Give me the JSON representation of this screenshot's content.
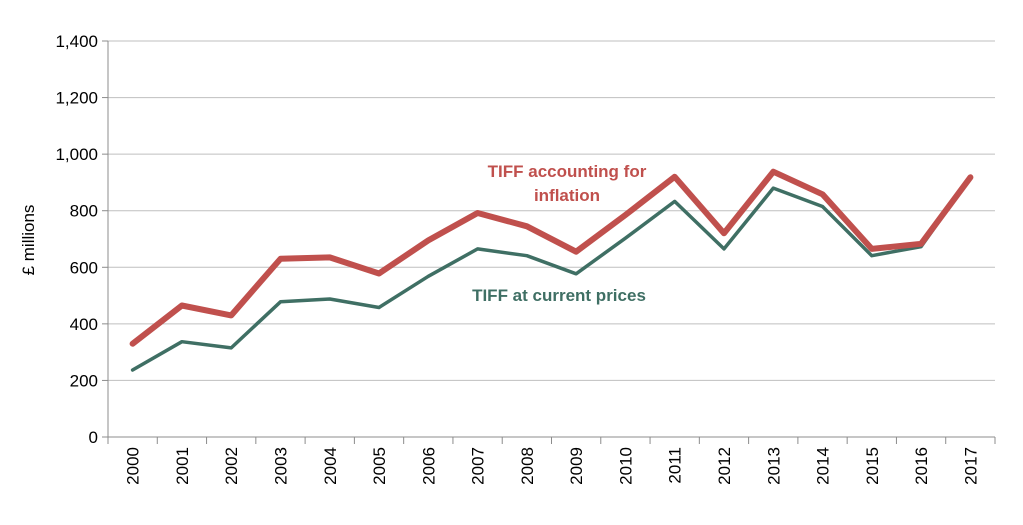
{
  "chart_data": {
    "type": "line",
    "title": "",
    "xlabel": "",
    "ylabel": "£ millions",
    "ylim": [
      0,
      1400
    ],
    "yticks": [
      0,
      200,
      400,
      600,
      800,
      1000,
      1200,
      1400
    ],
    "ytick_labels": [
      "0",
      "200",
      "400",
      "600",
      "800",
      "1,000",
      "1,200",
      "1,400"
    ],
    "grid": true,
    "categories": [
      "2000",
      "2001",
      "2002",
      "2003",
      "2004",
      "2005",
      "2006",
      "2007",
      "2008",
      "2009",
      "2010",
      "2011",
      "2012",
      "2013",
      "2014",
      "2015",
      "2016",
      "2017"
    ],
    "series": [
      {
        "name": "TIFF accounting for inflation",
        "label_lines": [
          "TIFF accounting for",
          "inflation"
        ],
        "color": "#c0504d",
        "values": [
          330,
          465,
          430,
          630,
          635,
          578,
          695,
          792,
          745,
          655,
          785,
          920,
          720,
          938,
          858,
          665,
          683,
          918
        ]
      },
      {
        "name": "TIFF at current prices",
        "label_lines": [
          "TIFF at current prices"
        ],
        "color": "#3f6f64",
        "values": [
          237,
          337,
          315,
          478,
          488,
          458,
          568,
          665,
          641,
          577,
          703,
          833,
          665,
          880,
          815,
          641,
          673,
          918
        ]
      }
    ]
  }
}
